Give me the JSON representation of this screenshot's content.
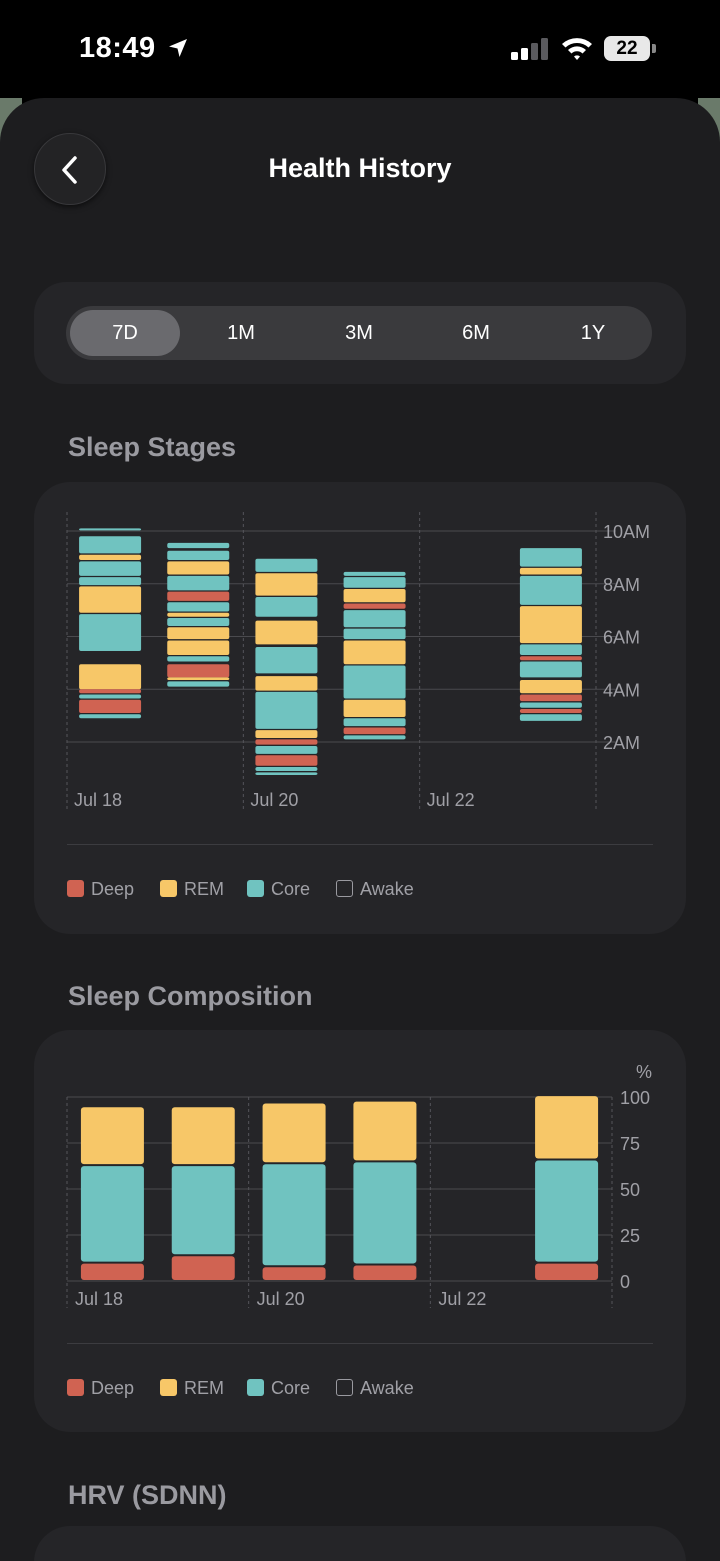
{
  "status": {
    "time": "18:49",
    "battery": "22"
  },
  "header": {
    "title": "Health History"
  },
  "range_tabs": [
    {
      "label": "7D",
      "active": true
    },
    {
      "label": "1M",
      "active": false
    },
    {
      "label": "3M",
      "active": false
    },
    {
      "label": "6M",
      "active": false
    },
    {
      "label": "1Y",
      "active": false
    }
  ],
  "colors": {
    "deep": "#d06352",
    "rem": "#f7c768",
    "core": "#70c3c0",
    "awake": "#9a9aa0"
  },
  "sleep_stages": {
    "title": "Sleep Stages",
    "legend": [
      "Deep",
      "REM",
      "Core",
      "Awake"
    ]
  },
  "sleep_composition": {
    "title": "Sleep Composition",
    "legend": [
      "Deep",
      "REM",
      "Core",
      "Awake"
    ]
  },
  "hrv": {
    "title": "HRV (SDNN)"
  },
  "chart_data": [
    {
      "type": "bar",
      "title": "Sleep Stages",
      "x_tick_labels": [
        "Jul 18",
        "Jul 20",
        "Jul 22"
      ],
      "y_tick_labels": [
        "10AM",
        "8AM",
        "6AM",
        "4AM",
        "2AM"
      ],
      "y_ticks_hours": [
        10,
        8,
        6,
        4,
        2
      ],
      "ylim_hours": [
        0.6,
        10.6
      ],
      "grid": true,
      "legend_position": "bottom",
      "nights": [
        {
          "day": 0,
          "segments": [
            [
              "core",
              10.05,
              10.1
            ],
            [
              "core",
              9.15,
              9.8
            ],
            [
              "rem",
              8.9,
              9.1
            ],
            [
              "core",
              8.3,
              8.85
            ],
            [
              "core",
              7.95,
              8.25
            ],
            [
              "rem",
              6.9,
              7.9
            ],
            [
              "core",
              5.45,
              6.85
            ],
            [
              "rem",
              4.0,
              4.95
            ],
            [
              "deep",
              3.85,
              4.0
            ],
            [
              "core",
              3.65,
              3.8
            ],
            [
              "deep",
              3.1,
              3.6
            ],
            [
              "core",
              2.9,
              3.05
            ]
          ]
        },
        {
          "day": 1,
          "segments": [
            [
              "core",
              9.35,
              9.55
            ],
            [
              "core",
              8.9,
              9.25
            ],
            [
              "rem",
              8.35,
              8.85
            ],
            [
              "core",
              7.75,
              8.3
            ],
            [
              "deep",
              7.35,
              7.7
            ],
            [
              "core",
              6.95,
              7.3
            ],
            [
              "rem",
              6.75,
              6.9
            ],
            [
              "core",
              6.4,
              6.7
            ],
            [
              "rem",
              5.9,
              6.35
            ],
            [
              "rem",
              5.3,
              5.85
            ],
            [
              "core",
              5.05,
              5.25
            ],
            [
              "deep",
              4.45,
              4.95
            ],
            [
              "rem",
              4.35,
              4.45
            ],
            [
              "core",
              4.1,
              4.3
            ]
          ]
        },
        {
          "day": 2,
          "segments": [
            [
              "core",
              8.45,
              8.95
            ],
            [
              "rem",
              7.55,
              8.4
            ],
            [
              "core",
              6.75,
              7.5
            ],
            [
              "rem",
              5.7,
              6.6
            ],
            [
              "core",
              4.6,
              5.6
            ],
            [
              "rem",
              3.95,
              4.5
            ],
            [
              "core",
              2.5,
              3.9
            ],
            [
              "rem",
              2.15,
              2.45
            ],
            [
              "deep",
              1.9,
              2.1
            ],
            [
              "core",
              1.55,
              1.85
            ],
            [
              "deep",
              1.1,
              1.5
            ],
            [
              "core",
              0.9,
              1.05
            ],
            [
              "core",
              0.75,
              0.85
            ]
          ]
        },
        {
          "day": 3,
          "segments": [
            [
              "core",
              8.3,
              8.45
            ],
            [
              "core",
              7.85,
              8.25
            ],
            [
              "rem",
              7.3,
              7.8
            ],
            [
              "deep",
              7.05,
              7.25
            ],
            [
              "core",
              6.35,
              7.0
            ],
            [
              "core",
              5.9,
              6.3
            ],
            [
              "rem",
              4.95,
              5.85
            ],
            [
              "core",
              3.65,
              4.9
            ],
            [
              "rem",
              2.95,
              3.6
            ],
            [
              "core",
              2.6,
              2.9
            ],
            [
              "deep",
              2.3,
              2.55
            ],
            [
              "core",
              2.1,
              2.25
            ]
          ]
        },
        {
          "day": 5,
          "segments": [
            [
              "core",
              8.65,
              9.35
            ],
            [
              "rem",
              8.35,
              8.6
            ],
            [
              "core",
              7.2,
              8.3
            ],
            [
              "rem",
              5.75,
              7.15
            ],
            [
              "core",
              5.3,
              5.7
            ],
            [
              "deep",
              5.1,
              5.25
            ],
            [
              "core",
              4.45,
              5.05
            ],
            [
              "rem",
              3.85,
              4.35
            ],
            [
              "deep",
              3.55,
              3.8
            ],
            [
              "core",
              3.3,
              3.5
            ],
            [
              "deep",
              3.1,
              3.25
            ],
            [
              "core",
              2.8,
              3.05
            ]
          ]
        }
      ]
    },
    {
      "type": "bar",
      "title": "Sleep Composition",
      "ylabel": "%",
      "x_tick_labels": [
        "Jul 18",
        "Jul 20",
        "Jul 22"
      ],
      "y_ticks": [
        100,
        75,
        50,
        25,
        0
      ],
      "ylim": [
        0,
        100
      ],
      "grid": true,
      "legend_position": "bottom",
      "stack_order": [
        "deep",
        "core",
        "rem"
      ],
      "bars": [
        {
          "day": 0,
          "deep": 10,
          "core": 53,
          "rem": 32
        },
        {
          "day": 1,
          "deep": 14,
          "core": 49,
          "rem": 32
        },
        {
          "day": 2,
          "deep": 8,
          "core": 56,
          "rem": 33
        },
        {
          "day": 3,
          "deep": 9,
          "core": 56,
          "rem": 33
        },
        {
          "day": 5,
          "deep": 10,
          "core": 56,
          "rem": 35
        }
      ]
    }
  ]
}
